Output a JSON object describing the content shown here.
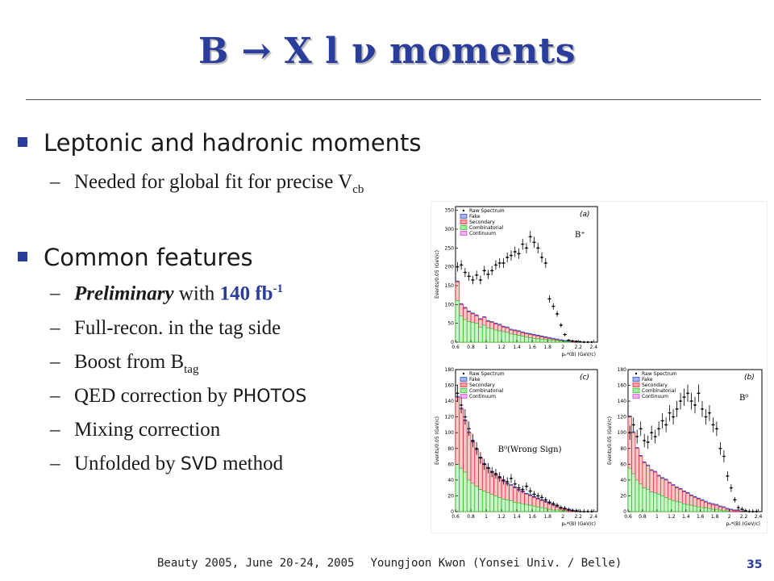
{
  "slide": {
    "title": "B → X l ν moments",
    "bullets": [
      {
        "text": "Leptonic and hadronic moments",
        "subs": [
          {
            "pre": "Needed for global fit for precise V",
            "subscript": "cb"
          }
        ]
      },
      {
        "text": "Common features",
        "subs": [
          {
            "italic": "Preliminary",
            "mid": " with ",
            "blue": "140 fb",
            "sup": "-1"
          },
          {
            "text": "Full-recon. in the tag side"
          },
          {
            "pre": "Boost from B",
            "subscript": "tag"
          },
          {
            "pre": "QED correction by ",
            "mono": "PHOTOS"
          },
          {
            "text": "Mixing correction"
          },
          {
            "pre": "Unfolded by ",
            "mono": "SVD",
            "post": " method"
          }
        ]
      }
    ]
  },
  "footer": {
    "event": "Beauty 2005, June 20-24, 2005",
    "author": "Youngjoon Kwon (Yonsei Univ. / Belle)",
    "page": "35"
  },
  "colors": {
    "title": "#2b3d9b",
    "bullet": "#2b3d9b",
    "raw": "#000000",
    "fake": "#1f3fd1",
    "secondary": "#e0182b",
    "combinatorial": "#1ec31e",
    "continuum": "#d23bd2"
  },
  "chart_data": [
    {
      "type": "bar",
      "tag": "(a)",
      "label": "B⁺",
      "ylabel": "Events/0.05 (GeV/c)",
      "xlabel": "pₑ*(B) (GeV/c)",
      "ylim": [
        0,
        360
      ],
      "yticks": [
        0,
        50,
        100,
        150,
        200,
        250,
        300,
        350
      ],
      "xticks": [
        "0.6",
        "0.8",
        "1",
        "1.2",
        "1.4",
        "1.6",
        "1.8",
        "2",
        "2.2",
        "2.4"
      ],
      "x": [
        0.625,
        0.675,
        0.725,
        0.775,
        0.825,
        0.875,
        0.925,
        0.975,
        1.025,
        1.075,
        1.125,
        1.175,
        1.225,
        1.275,
        1.325,
        1.375,
        1.425,
        1.475,
        1.525,
        1.575,
        1.625,
        1.675,
        1.725,
        1.775,
        1.825,
        1.875,
        1.925,
        1.975,
        2.025,
        2.075,
        2.125,
        2.175,
        2.225,
        2.275,
        2.325,
        2.375
      ],
      "raw": [
        200,
        205,
        185,
        175,
        165,
        178,
        165,
        190,
        180,
        190,
        205,
        210,
        210,
        225,
        230,
        240,
        235,
        260,
        250,
        280,
        265,
        250,
        225,
        210,
        115,
        95,
        75,
        45,
        20,
        5,
        3,
        2,
        1,
        0,
        0,
        0
      ],
      "background": [
        160,
        100,
        90,
        80,
        75,
        70,
        60,
        65,
        55,
        52,
        48,
        45,
        40,
        38,
        32,
        30,
        28,
        25,
        22,
        20,
        18,
        16,
        14,
        12,
        10,
        8,
        6,
        4,
        2,
        1,
        1,
        0,
        0,
        0,
        0,
        0
      ],
      "combinatorial": [
        110,
        70,
        60,
        55,
        52,
        50,
        40,
        45,
        38,
        36,
        32,
        30,
        28,
        26,
        22,
        20,
        18,
        16,
        14,
        12,
        10,
        9,
        8,
        7,
        6,
        5,
        4,
        3,
        2,
        1,
        0,
        0,
        0,
        0,
        0,
        0
      ],
      "legend": [
        "Raw Spectrum",
        "Fake",
        "Secondary",
        "Combinatorial",
        "Continuum"
      ]
    },
    {
      "type": "bar",
      "tag": "(c)",
      "label": "B⁰(Wrong Sign)",
      "ylabel": "Events/0.05 (GeV/c)",
      "xlabel": "pₑ*(B) (GeV/c)",
      "ylim": [
        0,
        180
      ],
      "yticks": [
        0,
        20,
        40,
        60,
        80,
        100,
        120,
        140,
        160,
        180
      ],
      "xticks": [
        "0.6",
        "0.8",
        "1",
        "1.2",
        "1.4",
        "1.6",
        "1.8",
        "2",
        "2.2",
        "2.4"
      ],
      "x": [
        0.625,
        0.675,
        0.725,
        0.775,
        0.825,
        0.875,
        0.925,
        0.975,
        1.025,
        1.075,
        1.125,
        1.175,
        1.225,
        1.275,
        1.325,
        1.375,
        1.425,
        1.475,
        1.525,
        1.575,
        1.625,
        1.675,
        1.725,
        1.775,
        1.825,
        1.875,
        1.925,
        1.975,
        2.025,
        2.075,
        2.125,
        2.175,
        2.225,
        2.275,
        2.325,
        2.375
      ],
      "raw": [
        150,
        135,
        120,
        105,
        90,
        80,
        68,
        60,
        55,
        50,
        48,
        44,
        40,
        38,
        42,
        35,
        30,
        28,
        32,
        26,
        22,
        20,
        18,
        15,
        12,
        10,
        8,
        5,
        4,
        2,
        1,
        1,
        0,
        0,
        0,
        0
      ],
      "background": [
        145,
        130,
        115,
        100,
        88,
        78,
        68,
        60,
        55,
        50,
        46,
        42,
        38,
        35,
        33,
        30,
        27,
        25,
        22,
        20,
        18,
        16,
        14,
        12,
        10,
        8,
        6,
        4,
        3,
        2,
        1,
        0,
        0,
        0,
        0,
        0
      ],
      "combinatorial": [
        60,
        55,
        50,
        40,
        36,
        32,
        28,
        26,
        24,
        22,
        20,
        18,
        16,
        15,
        14,
        12,
        11,
        10,
        9,
        8,
        7,
        6,
        5,
        4,
        3,
        2,
        2,
        1,
        1,
        0,
        0,
        0,
        0,
        0,
        0,
        0
      ],
      "legend": [
        "Raw Spectrum",
        "Fake",
        "Secondary",
        "Combinatorial",
        "Continuum"
      ]
    },
    {
      "type": "bar",
      "tag": "(b)",
      "label": "B⁰",
      "ylabel": "Events/0.05 (GeV/c)",
      "xlabel": "pₑ*(B) (GeV/c)",
      "ylim": [
        0,
        180
      ],
      "yticks": [
        0,
        20,
        40,
        60,
        80,
        100,
        120,
        140,
        160,
        180
      ],
      "xticks": [
        "0.6",
        "0.8",
        "1",
        "1.2",
        "1.4",
        "1.6",
        "1.8",
        "2",
        "2.2",
        "2.4"
      ],
      "x": [
        0.625,
        0.675,
        0.725,
        0.775,
        0.825,
        0.875,
        0.925,
        0.975,
        1.025,
        1.075,
        1.125,
        1.175,
        1.225,
        1.275,
        1.325,
        1.375,
        1.425,
        1.475,
        1.525,
        1.575,
        1.625,
        1.675,
        1.725,
        1.775,
        1.825,
        1.875,
        1.925,
        1.975,
        2.025,
        2.075,
        2.125,
        2.175,
        2.225,
        2.275,
        2.325,
        2.375
      ],
      "raw": [
        100,
        110,
        95,
        105,
        90,
        88,
        100,
        95,
        105,
        115,
        110,
        125,
        120,
        130,
        140,
        145,
        150,
        140,
        135,
        150,
        130,
        120,
        125,
        110,
        105,
        80,
        70,
        45,
        30,
        15,
        5,
        3,
        1,
        0,
        0,
        0
      ],
      "background": [
        120,
        100,
        80,
        70,
        62,
        58,
        52,
        50,
        45,
        42,
        40,
        36,
        33,
        30,
        28,
        25,
        23,
        20,
        18,
        16,
        14,
        12,
        10,
        9,
        8,
        6,
        5,
        3,
        2,
        1,
        1,
        0,
        0,
        0,
        0,
        0
      ],
      "combinatorial": [
        55,
        48,
        40,
        35,
        30,
        28,
        25,
        24,
        22,
        20,
        18,
        16,
        14,
        13,
        12,
        10,
        9,
        8,
        7,
        6,
        5,
        5,
        4,
        3,
        3,
        2,
        1,
        1,
        0,
        0,
        0,
        0,
        0,
        0,
        0,
        0
      ],
      "legend": [
        "Raw Spectrum",
        "Fake",
        "Secondary",
        "Combinatorial",
        "Continuum"
      ]
    }
  ]
}
